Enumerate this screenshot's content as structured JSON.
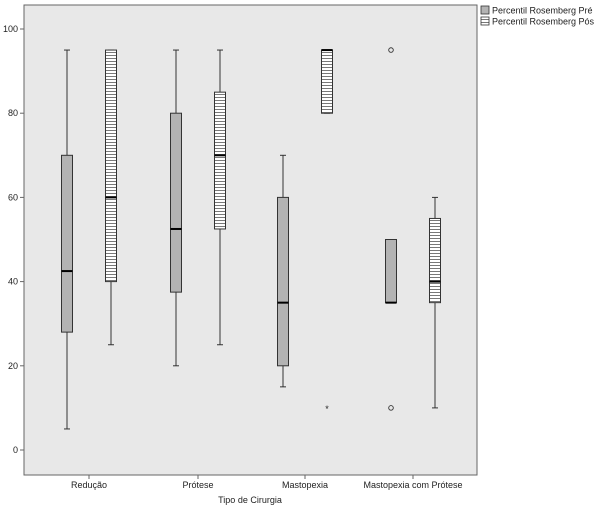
{
  "chart_data": {
    "type": "boxplot",
    "xlabel": "Tipo de Cirurgia",
    "ylabel": "",
    "ylim": [
      -5,
      105
    ],
    "yticks": [
      0,
      20,
      40,
      60,
      80,
      100
    ],
    "grid": false,
    "legend_position": "top-right-outside",
    "categories": [
      "Redução",
      "Prótese",
      "Mastopexia",
      "Mastopexia com Prótese"
    ],
    "series": [
      {
        "name": "Percentil Rosemberg Pré",
        "fill": "#b3b3b3",
        "pattern": "solid",
        "boxes": [
          {
            "min": 5,
            "q1": 28,
            "median": 42.5,
            "q3": 70,
            "max": 95,
            "outliers": []
          },
          {
            "min": 20,
            "q1": 37.5,
            "median": 52.5,
            "q3": 80,
            "max": 95,
            "outliers": []
          },
          {
            "min": 15,
            "q1": 20,
            "median": 35,
            "q3": 60,
            "max": 70,
            "outliers": []
          },
          {
            "min": 35,
            "q1": 35,
            "median": 35,
            "q3": 50,
            "max": 50,
            "outliers": [
              {
                "value": 95,
                "marker": "circle"
              },
              {
                "value": 10,
                "marker": "circle"
              }
            ]
          }
        ]
      },
      {
        "name": "Percentil Rosemberg Pós",
        "fill": "#ffffff",
        "pattern": "horizontal-lines",
        "boxes": [
          {
            "min": 25,
            "q1": 40,
            "median": 60,
            "q3": 95,
            "max": 95,
            "outliers": []
          },
          {
            "min": 25,
            "q1": 52.5,
            "median": 70,
            "q3": 85,
            "max": 95,
            "outliers": []
          },
          {
            "min": 80,
            "q1": 80,
            "median": 95,
            "q3": 95,
            "max": 95,
            "outliers": [
              {
                "value": 10,
                "marker": "star"
              }
            ]
          },
          {
            "min": 10,
            "q1": 35,
            "median": 40,
            "q3": 55,
            "max": 60,
            "outliers": []
          }
        ]
      }
    ]
  },
  "colors": {
    "plot_background": "#e8e8e8",
    "axis": "#666666",
    "box_stroke": "#333333"
  }
}
